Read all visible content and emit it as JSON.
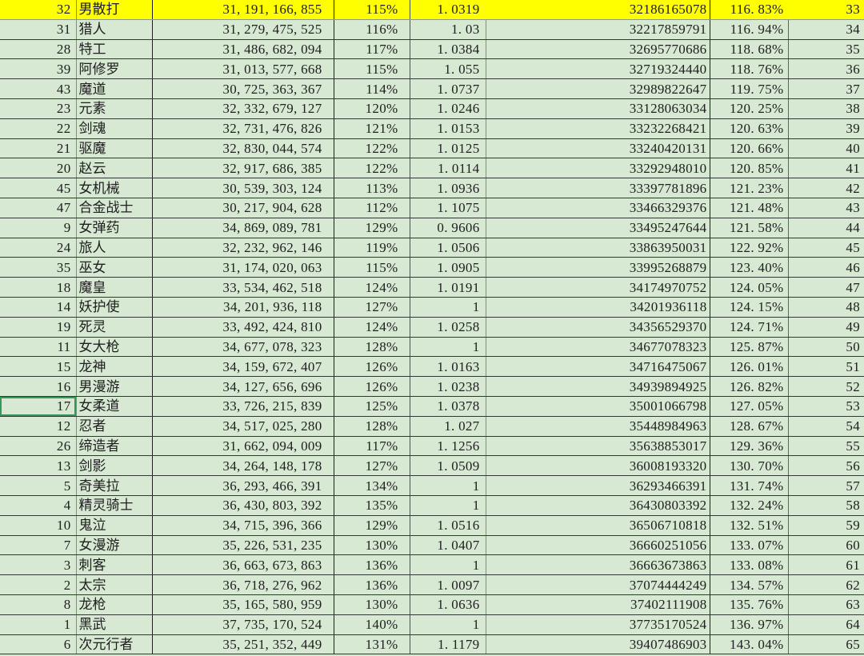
{
  "sheet": {
    "colors": {
      "cell_background": "#d7e8d3",
      "highlight_background": "#ffff00",
      "text": "#202020",
      "grid_dark": "#1f1f1f",
      "grid_light": "#7d8f7d",
      "selection_border": "#35985a"
    },
    "selection": {
      "row_index": 20,
      "col_index": 0
    },
    "rows": [
      {
        "hl": true,
        "c": [
          "32",
          "男散打",
          "31, 191, 166, 855",
          "115%",
          "1. 0319",
          "32186165078",
          "116. 83%",
          "33"
        ]
      },
      {
        "hl": false,
        "c": [
          "31",
          "猎人",
          "31, 279, 475, 525",
          "116%",
          "1. 03",
          "32217859791",
          "116. 94%",
          "34"
        ]
      },
      {
        "hl": false,
        "c": [
          "28",
          "特工",
          "31, 486, 682, 094",
          "117%",
          "1. 0384",
          "32695770686",
          "118. 68%",
          "35"
        ]
      },
      {
        "hl": false,
        "c": [
          "39",
          "阿修罗",
          "31, 013, 577, 668",
          "115%",
          "1. 055",
          "32719324440",
          "118. 76%",
          "36"
        ]
      },
      {
        "hl": false,
        "c": [
          "43",
          "魔道",
          "30, 725, 363, 367",
          "114%",
          "1. 0737",
          "32989822647",
          "119. 75%",
          "37"
        ]
      },
      {
        "hl": false,
        "c": [
          "23",
          "元素",
          "32, 332, 679, 127",
          "120%",
          "1. 0246",
          "33128063034",
          "120. 25%",
          "38"
        ]
      },
      {
        "hl": false,
        "c": [
          "22",
          "剑魂",
          "32, 731, 476, 826",
          "121%",
          "1. 0153",
          "33232268421",
          "120. 63%",
          "39"
        ]
      },
      {
        "hl": false,
        "c": [
          "21",
          "驱魔",
          "32, 830, 044, 574",
          "122%",
          "1. 0125",
          "33240420131",
          "120. 66%",
          "40"
        ]
      },
      {
        "hl": false,
        "c": [
          "20",
          "赵云",
          "32, 917, 686, 385",
          "122%",
          "1. 0114",
          "33292948010",
          "120. 85%",
          "41"
        ]
      },
      {
        "hl": false,
        "c": [
          "45",
          "女机械",
          "30, 539, 303, 124",
          "113%",
          "1. 0936",
          "33397781896",
          "121. 23%",
          "42"
        ]
      },
      {
        "hl": false,
        "c": [
          "47",
          "合金战士",
          "30, 217, 904, 628",
          "112%",
          "1. 1075",
          "33466329376",
          "121. 48%",
          "43"
        ]
      },
      {
        "hl": false,
        "c": [
          "9",
          "女弹药",
          "34, 869, 089, 781",
          "129%",
          "0. 9606",
          "33495247644",
          "121. 58%",
          "44"
        ]
      },
      {
        "hl": false,
        "c": [
          "24",
          "旅人",
          "32, 232, 962, 146",
          "119%",
          "1. 0506",
          "33863950031",
          "122. 92%",
          "45"
        ]
      },
      {
        "hl": false,
        "c": [
          "35",
          "巫女",
          "31, 174, 020, 063",
          "115%",
          "1. 0905",
          "33995268879",
          "123. 40%",
          "46"
        ]
      },
      {
        "hl": false,
        "c": [
          "18",
          "魔皇",
          "33, 534, 462, 518",
          "124%",
          "1. 0191",
          "34174970752",
          "124. 05%",
          "47"
        ]
      },
      {
        "hl": false,
        "c": [
          "14",
          "妖护使",
          "34, 201, 936, 118",
          "127%",
          "1",
          "34201936118",
          "124. 15%",
          "48"
        ]
      },
      {
        "hl": false,
        "c": [
          "19",
          "死灵",
          "33, 492, 424, 810",
          "124%",
          "1. 0258",
          "34356529370",
          "124. 71%",
          "49"
        ]
      },
      {
        "hl": false,
        "c": [
          "11",
          "女大枪",
          "34, 677, 078, 323",
          "128%",
          "1",
          "34677078323",
          "125. 87%",
          "50"
        ]
      },
      {
        "hl": false,
        "c": [
          "15",
          "龙神",
          "34, 159, 672, 407",
          "126%",
          "1. 0163",
          "34716475067",
          "126. 01%",
          "51"
        ]
      },
      {
        "hl": false,
        "c": [
          "16",
          "男漫游",
          "34, 127, 656, 696",
          "126%",
          "1. 0238",
          "34939894925",
          "126. 82%",
          "52"
        ]
      },
      {
        "hl": false,
        "c": [
          "17",
          "女柔道",
          "33, 726, 215, 839",
          "125%",
          "1. 0378",
          "35001066798",
          "127. 05%",
          "53"
        ]
      },
      {
        "hl": false,
        "c": [
          "12",
          "忍者",
          "34, 517, 025, 280",
          "128%",
          "1. 027",
          "35448984963",
          "128. 67%",
          "54"
        ]
      },
      {
        "hl": false,
        "c": [
          "26",
          "缔造者",
          "31, 662, 094, 009",
          "117%",
          "1. 1256",
          "35638853017",
          "129. 36%",
          "55"
        ]
      },
      {
        "hl": false,
        "c": [
          "13",
          "剑影",
          "34, 264, 148, 178",
          "127%",
          "1. 0509",
          "36008193320",
          "130. 70%",
          "56"
        ]
      },
      {
        "hl": false,
        "c": [
          "5",
          "奇美拉",
          "36, 293, 466, 391",
          "134%",
          "1",
          "36293466391",
          "131. 74%",
          "57"
        ]
      },
      {
        "hl": false,
        "c": [
          "4",
          "精灵骑士",
          "36, 430, 803, 392",
          "135%",
          "1",
          "36430803392",
          "132. 24%",
          "58"
        ]
      },
      {
        "hl": false,
        "c": [
          "10",
          "鬼泣",
          "34, 715, 396, 366",
          "129%",
          "1. 0516",
          "36506710818",
          "132. 51%",
          "59"
        ]
      },
      {
        "hl": false,
        "c": [
          "7",
          "女漫游",
          "35, 226, 531, 235",
          "130%",
          "1. 0407",
          "36660251056",
          "133. 07%",
          "60"
        ]
      },
      {
        "hl": false,
        "c": [
          "3",
          "刺客",
          "36, 663, 673, 863",
          "136%",
          "1",
          "36663673863",
          "133. 08%",
          "61"
        ]
      },
      {
        "hl": false,
        "c": [
          "2",
          "太宗",
          "36, 718, 276, 962",
          "136%",
          "1. 0097",
          "37074444249",
          "134. 57%",
          "62"
        ]
      },
      {
        "hl": false,
        "c": [
          "8",
          "龙枪",
          "35, 165, 580, 959",
          "130%",
          "1. 0636",
          "37402111908",
          "135. 76%",
          "63"
        ]
      },
      {
        "hl": false,
        "c": [
          "1",
          "黑武",
          "37, 735, 170, 524",
          "140%",
          "1",
          "37735170524",
          "136. 97%",
          "64"
        ]
      },
      {
        "hl": false,
        "c": [
          "6",
          "次元行者",
          "35, 251, 352, 449",
          "131%",
          "1. 1179",
          "39407486903",
          "143. 04%",
          "65"
        ]
      }
    ]
  }
}
